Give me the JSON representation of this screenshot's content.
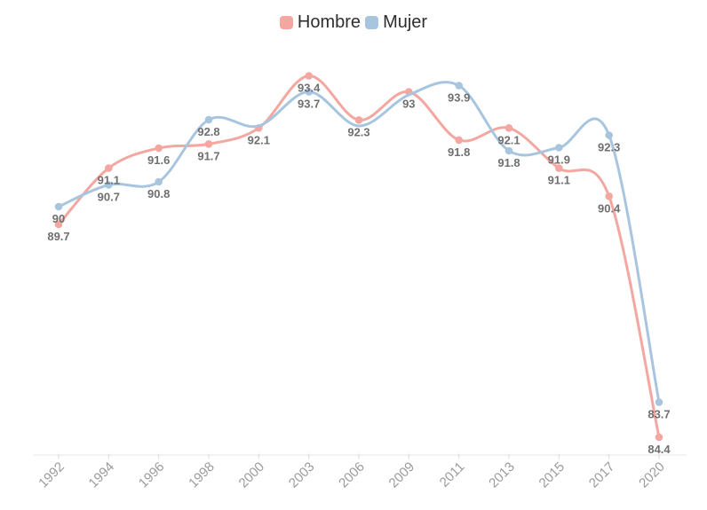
{
  "legend": {
    "items": [
      {
        "label": "Hombre",
        "color": "#F4A7A1"
      },
      {
        "label": "Mujer",
        "color": "#A8C5E0"
      }
    ]
  },
  "chart_data": {
    "type": "line",
    "smooth": true,
    "grid": false,
    "legend_position": "top",
    "x_categories": [
      "1992",
      "1994",
      "1996",
      "1998",
      "2000",
      "2003",
      "2006",
      "2009",
      "2011",
      "2013",
      "2015",
      "2017",
      "2020"
    ],
    "series": [
      {
        "name": "Hombre",
        "color": "#F4A7A1",
        "values": [
          89.7,
          91.1,
          91.6,
          91.7,
          92.1,
          93.4,
          92.3,
          93,
          91.8,
          92.1,
          91.1,
          90.4,
          84.4
        ],
        "labels": [
          "89.7",
          "91.1",
          "91.6",
          "91.7",
          "92.1",
          "93.4",
          "92.3",
          "93",
          "91.8",
          "92.1",
          "91.1",
          "90.4",
          "84.4"
        ]
      },
      {
        "name": "Mujer",
        "color": "#A8C5E0",
        "values": [
          90,
          90.7,
          90.8,
          92.8,
          92.6,
          93.7,
          92.6,
          93.6,
          93.9,
          91.8,
          91.9,
          92.3,
          83.7
        ],
        "labels": [
          "90",
          "90.7",
          "90.8",
          "92.8",
          "",
          "93.7",
          "",
          "",
          "93.9",
          "91.8",
          "91.9",
          "92.3",
          "83.7"
        ]
      }
    ],
    "data_label_color": "#6F6F6F",
    "axis": {
      "line_color": "#E4E7EA",
      "tick_color": "#D8DBDE",
      "label_color": "#9B9B9B"
    }
  }
}
